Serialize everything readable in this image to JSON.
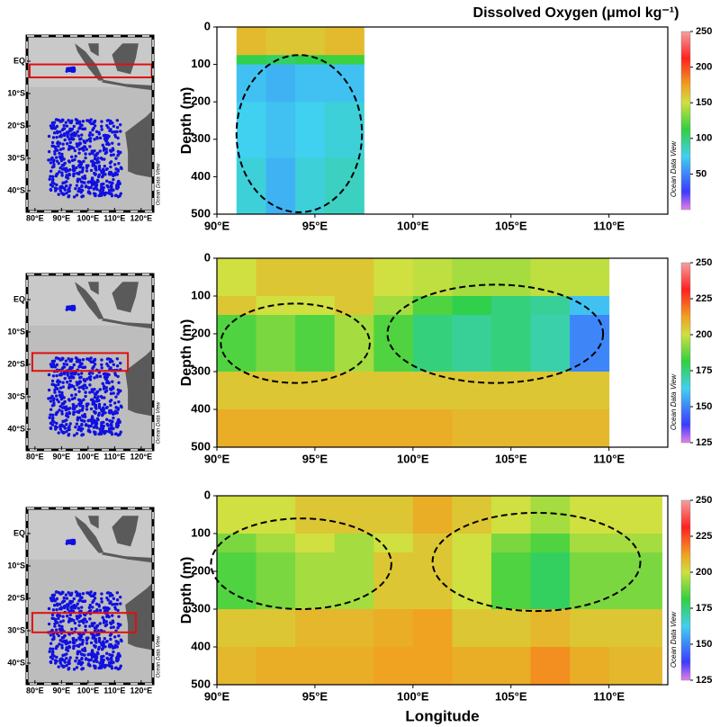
{
  "chart_data": [
    {
      "type": "section",
      "title": "Dissolved Oxygen (μmol kg⁻¹)",
      "ylabel": "Depth (m)",
      "credit": "Ocean Data View",
      "xlim": [
        90,
        113
      ],
      "xticks": [
        {
          "value": 90,
          "label": "90°E"
        },
        {
          "value": 95,
          "label": "95°E"
        },
        {
          "value": 100,
          "label": "100°E"
        },
        {
          "value": 105,
          "label": "105°E"
        },
        {
          "value": 110,
          "label": "110°E"
        }
      ],
      "ylim": [
        0,
        500
      ],
      "y_inverted": true,
      "yticks": [
        0,
        100,
        200,
        300,
        400,
        500
      ],
      "clim": [
        0,
        250
      ],
      "cticks": [
        50,
        100,
        150,
        200,
        250
      ],
      "x_edges": [
        91,
        92.5,
        94,
        95.5,
        97.5
      ],
      "depth_edges": [
        0,
        75,
        100,
        200,
        350,
        500
      ],
      "z": [
        [
          165,
          160,
          160,
          165
        ],
        [
          110,
          105,
          110,
          115
        ],
        [
          70,
          65,
          70,
          70
        ],
        [
          75,
          70,
          75,
          80
        ],
        [
          80,
          65,
          80,
          85
        ]
      ]
    },
    {
      "type": "section",
      "ylabel": "Depth (m)",
      "credit": "Ocean Data View",
      "xlim": [
        90,
        113
      ],
      "xticks": [
        {
          "value": 90,
          "label": "90°E"
        },
        {
          "value": 95,
          "label": "95°E"
        },
        {
          "value": 100,
          "label": "100°E"
        },
        {
          "value": 105,
          "label": "105°E"
        },
        {
          "value": 110,
          "label": "110°E"
        }
      ],
      "ylim": [
        0,
        500
      ],
      "y_inverted": true,
      "yticks": [
        0,
        100,
        200,
        300,
        400,
        500
      ],
      "clim": [
        125,
        250
      ],
      "cticks": [
        125,
        150,
        175,
        200,
        225,
        250
      ],
      "x_edges": [
        90,
        92,
        94,
        96,
        98,
        100,
        102,
        104,
        106,
        108,
        110
      ],
      "depth_edges": [
        0,
        100,
        150,
        300,
        400,
        500
      ],
      "z": [
        [
          200,
          205,
          205,
          205,
          200,
          198,
          195,
          195,
          198,
          198
        ],
        [
          205,
          200,
          200,
          205,
          195,
          185,
          180,
          175,
          172,
          160
        ],
        [
          185,
          190,
          185,
          195,
          185,
          175,
          172,
          175,
          170,
          150
        ],
        [
          205,
          205,
          205,
          205,
          205,
          205,
          205,
          205,
          205,
          205
        ],
        [
          210,
          210,
          210,
          210,
          210,
          210,
          208,
          208,
          208,
          208
        ]
      ]
    },
    {
      "type": "section",
      "ylabel": "Depth (m)",
      "xlabel": "Longitude",
      "credit": "Ocean Data View",
      "xlim": [
        90,
        113
      ],
      "xticks": [
        {
          "value": 90,
          "label": "90°E"
        },
        {
          "value": 95,
          "label": "95°E"
        },
        {
          "value": 100,
          "label": "100°E"
        },
        {
          "value": 105,
          "label": "105°E"
        },
        {
          "value": 110,
          "label": "110°E"
        }
      ],
      "ylim": [
        0,
        500
      ],
      "y_inverted": true,
      "yticks": [
        0,
        100,
        200,
        300,
        400,
        500
      ],
      "clim": [
        125,
        250
      ],
      "cticks": [
        125,
        150,
        175,
        200,
        225,
        250
      ],
      "x_edges": [
        90,
        92,
        94,
        96,
        98,
        100,
        102,
        104,
        106,
        108,
        110,
        112.7
      ],
      "depth_edges": [
        0,
        100,
        150,
        300,
        400,
        500
      ],
      "z": [
        [
          200,
          200,
          205,
          205,
          205,
          210,
          205,
          200,
          195,
          200,
          200
        ],
        [
          190,
          195,
          200,
          195,
          200,
          205,
          200,
          190,
          185,
          195,
          195
        ],
        [
          185,
          190,
          195,
          195,
          205,
          205,
          200,
          185,
          178,
          190,
          190
        ],
        [
          205,
          205,
          208,
          208,
          210,
          212,
          205,
          205,
          208,
          205,
          205
        ],
        [
          208,
          210,
          210,
          210,
          212,
          212,
          210,
          210,
          215,
          210,
          208
        ]
      ]
    }
  ],
  "map": {
    "credit": "Ocean Data View",
    "lat_ticks": [
      {
        "value": 0,
        "label": "EQ"
      },
      {
        "value": -10,
        "label": "10°S"
      },
      {
        "value": -20,
        "label": "20°S"
      },
      {
        "value": -30,
        "label": "30°S"
      },
      {
        "value": -40,
        "label": "40°S"
      }
    ],
    "lon_ticks": [
      {
        "value": 80,
        "label": "80°E"
      },
      {
        "value": 90,
        "label": "90°E"
      },
      {
        "value": 100,
        "label": "100°E"
      },
      {
        "value": 110,
        "label": "110°E"
      },
      {
        "value": 120,
        "label": "120°E"
      }
    ],
    "boxes": [
      {
        "lon": [
          78,
          124
        ],
        "lat": [
          -1,
          -5
        ]
      },
      {
        "lon": [
          79,
          115
        ],
        "lat": [
          -16.5,
          -22
        ]
      },
      {
        "lon": [
          79,
          118
        ],
        "lat": [
          -24.5,
          -30.5
        ]
      }
    ]
  }
}
